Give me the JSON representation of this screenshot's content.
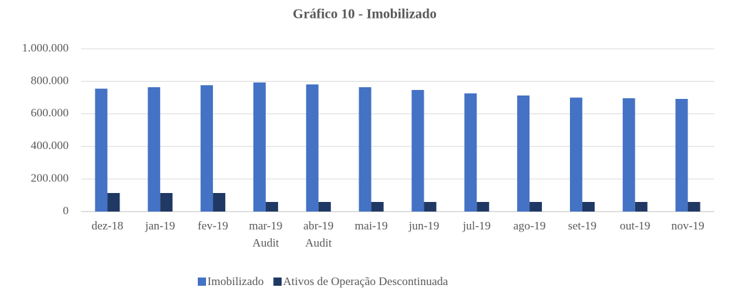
{
  "chart_data": {
    "type": "bar",
    "title": "Gráfico 10 - Imobilizado",
    "categories": [
      "dez-18",
      "jan-19",
      "fev-19",
      "mar-19\nAudit",
      "abr-19\nAudit",
      "mai-19",
      "jun-19",
      "jul-19",
      "ago-19",
      "set-19",
      "out-19",
      "nov-19"
    ],
    "series": [
      {
        "name": "Imobilizado",
        "color": "#4472c4",
        "values": [
          755000,
          764000,
          776000,
          793000,
          781000,
          764000,
          747000,
          726000,
          713000,
          700000,
          696000,
          692000
        ]
      },
      {
        "name": "Ativos de Operação Descontinuada",
        "color": "#203864",
        "values": [
          114000,
          114000,
          114000,
          59000,
          59000,
          59000,
          59000,
          59000,
          59000,
          59000,
          59000,
          59000
        ]
      }
    ],
    "ylim": [
      0,
      1000000
    ],
    "yticks": [
      0,
      {
        "value": 200000,
        "label": "200.000"
      },
      {
        "value": 400000,
        "label": "400.000"
      },
      {
        "value": 600000,
        "label": "600.000"
      },
      {
        "value": 800000,
        "label": "800.000"
      },
      {
        "value": 1000000,
        "label": "1.000.000"
      }
    ],
    "grid": true
  }
}
